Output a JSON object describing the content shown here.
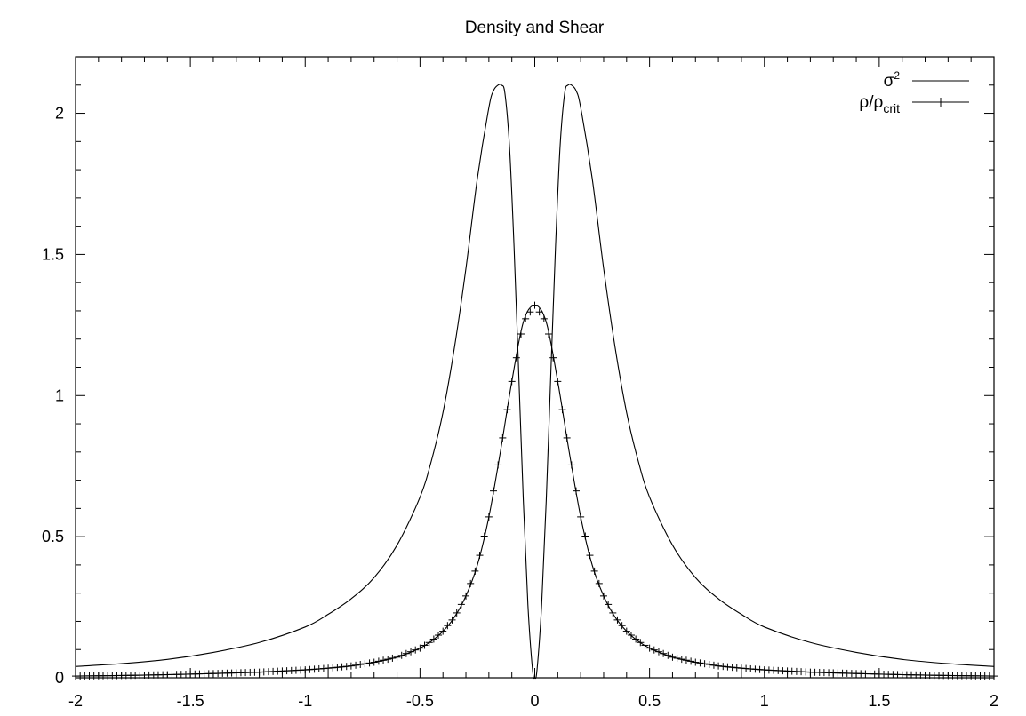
{
  "chart_data": {
    "type": "line",
    "title": "Density and Shear",
    "xlabel": "",
    "ylabel": "",
    "xlim": [
      -2,
      2
    ],
    "ylim": [
      0,
      2.2
    ],
    "x_ticks": [
      -2,
      -1.5,
      -1,
      -0.5,
      0,
      0.5,
      1,
      1.5,
      2
    ],
    "x_tick_labels": [
      "-2",
      "-1.5",
      "-1",
      "-0.5",
      "0",
      "0.5",
      "1",
      "1.5",
      "2"
    ],
    "y_ticks": [
      0,
      0.5,
      1,
      1.5,
      2
    ],
    "y_tick_labels": [
      "0",
      "0.5",
      "1",
      "1.5",
      "2"
    ],
    "grid": false,
    "legend_position": "top-right",
    "series": [
      {
        "name": "σ²",
        "legend_base": "σ",
        "legend_sup": "2",
        "style": "line",
        "x": [
          -2,
          -1.8,
          -1.6,
          -1.4,
          -1.2,
          -1,
          -0.9,
          -0.8,
          -0.7,
          -0.6,
          -0.5,
          -0.45,
          -0.4,
          -0.35,
          -0.3,
          -0.25,
          -0.2,
          -0.18,
          -0.16,
          -0.145,
          -0.13,
          -0.11,
          -0.09,
          -0.07,
          -0.05,
          -0.03,
          -0.01,
          0,
          0.01,
          0.03,
          0.05,
          0.07,
          0.09,
          0.11,
          0.13,
          0.145,
          0.16,
          0.18,
          0.2,
          0.25,
          0.3,
          0.35,
          0.4,
          0.45,
          0.5,
          0.6,
          0.7,
          0.8,
          0.9,
          1,
          1.2,
          1.4,
          1.6,
          1.8,
          2
        ],
        "y": [
          0.04,
          0.05,
          0.065,
          0.09,
          0.125,
          0.18,
          0.225,
          0.28,
          0.355,
          0.47,
          0.64,
          0.77,
          0.94,
          1.17,
          1.45,
          1.77,
          2.02,
          2.08,
          2.1,
          2.1,
          2.07,
          1.88,
          1.52,
          1.08,
          0.63,
          0.26,
          0.03,
          0,
          0.03,
          0.26,
          0.63,
          1.08,
          1.52,
          1.88,
          2.07,
          2.1,
          2.1,
          2.08,
          2.02,
          1.77,
          1.45,
          1.17,
          0.94,
          0.77,
          0.64,
          0.47,
          0.355,
          0.28,
          0.225,
          0.18,
          0.125,
          0.09,
          0.065,
          0.05,
          0.04
        ]
      },
      {
        "name": "ρ/ρcrit",
        "legend_base": "ρ/ρ",
        "legend_sub": "crit",
        "style": "line+cross",
        "marker_spacing": 0.02,
        "x": [
          -2,
          -1.8,
          -1.6,
          -1.4,
          -1.2,
          -1,
          -0.9,
          -0.8,
          -0.7,
          -0.6,
          -0.5,
          -0.45,
          -0.4,
          -0.35,
          -0.3,
          -0.25,
          -0.2,
          -0.15,
          -0.1,
          -0.05,
          0,
          0.05,
          0.1,
          0.15,
          0.2,
          0.25,
          0.3,
          0.35,
          0.4,
          0.45,
          0.5,
          0.6,
          0.7,
          0.8,
          0.9,
          1,
          1.2,
          1.4,
          1.6,
          1.8,
          2
        ],
        "y": [
          0.006,
          0.008,
          0.011,
          0.015,
          0.02,
          0.028,
          0.034,
          0.042,
          0.055,
          0.073,
          0.105,
          0.13,
          0.165,
          0.215,
          0.29,
          0.4,
          0.57,
          0.8,
          1.05,
          1.26,
          1.32,
          1.26,
          1.05,
          0.8,
          0.57,
          0.4,
          0.29,
          0.215,
          0.165,
          0.13,
          0.105,
          0.073,
          0.055,
          0.042,
          0.034,
          0.028,
          0.02,
          0.015,
          0.011,
          0.008,
          0.006
        ]
      }
    ]
  }
}
